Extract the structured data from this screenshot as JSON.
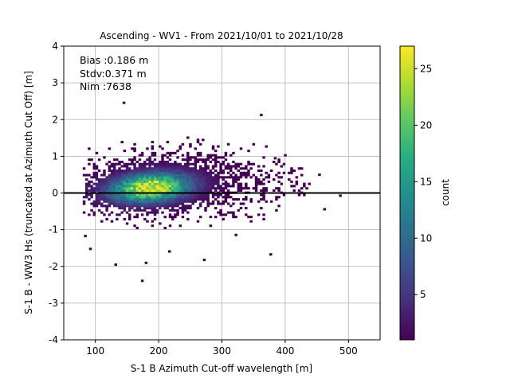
{
  "chart_data": {
    "type": "heatmap",
    "title": "Ascending - WV1 - From 2021/10/01 to 2021/10/28",
    "xlabel": "S-1 B Azimuth Cut-off wavelength [m]",
    "ylabel": "S-1 B - WW3 Hs (truncated at Azimuth Cut Off) [m]",
    "xlim": [
      50,
      550
    ],
    "ylim": [
      -4,
      4
    ],
    "x_ticks": [
      "100",
      "200",
      "300",
      "400",
      "500"
    ],
    "y_ticks": [
      "-4",
      "-3",
      "-2",
      "-1",
      "0",
      "1",
      "2",
      "3",
      "4"
    ],
    "x_tick_values": [
      100,
      200,
      300,
      400,
      500
    ],
    "y_tick_values": [
      -4,
      -3,
      -2,
      -1,
      0,
      1,
      2,
      3,
      4
    ],
    "grid": true,
    "reference_line_y": 0,
    "colormap": "viridis",
    "colorbar": {
      "label": "count",
      "min": 1,
      "max": 27,
      "ticks": [
        "5",
        "10",
        "15",
        "20",
        "25"
      ],
      "tick_values": [
        5,
        10,
        15,
        20,
        25
      ]
    },
    "stats": {
      "bias": "Bias :0.186 m",
      "stdv": "Stdv:0.371 m",
      "nim": "Nim :7638"
    },
    "density": {
      "center_x": 185,
      "center_y": 0.12,
      "peak_count": 27,
      "x_range": [
        80,
        470
      ],
      "y_range": [
        -2.4,
        2.45
      ]
    },
    "outliers": [
      {
        "x": 143,
        "y": 2.43
      },
      {
        "x": 172,
        "y": -2.42
      },
      {
        "x": 270,
        "y": -1.85
      },
      {
        "x": 130,
        "y": -1.98
      },
      {
        "x": 178,
        "y": -1.93
      },
      {
        "x": 375,
        "y": -1.7
      },
      {
        "x": 90,
        "y": -1.55
      },
      {
        "x": 460,
        "y": -0.47
      },
      {
        "x": 485,
        "y": -0.1
      },
      {
        "x": 452,
        "y": 0.47
      },
      {
        "x": 360,
        "y": 2.1
      },
      {
        "x": 382,
        "y": 0.92
      },
      {
        "x": 398,
        "y": 1.0
      },
      {
        "x": 82,
        "y": -1.2
      },
      {
        "x": 215,
        "y": -1.62
      },
      {
        "x": 320,
        "y": -1.17
      }
    ]
  }
}
